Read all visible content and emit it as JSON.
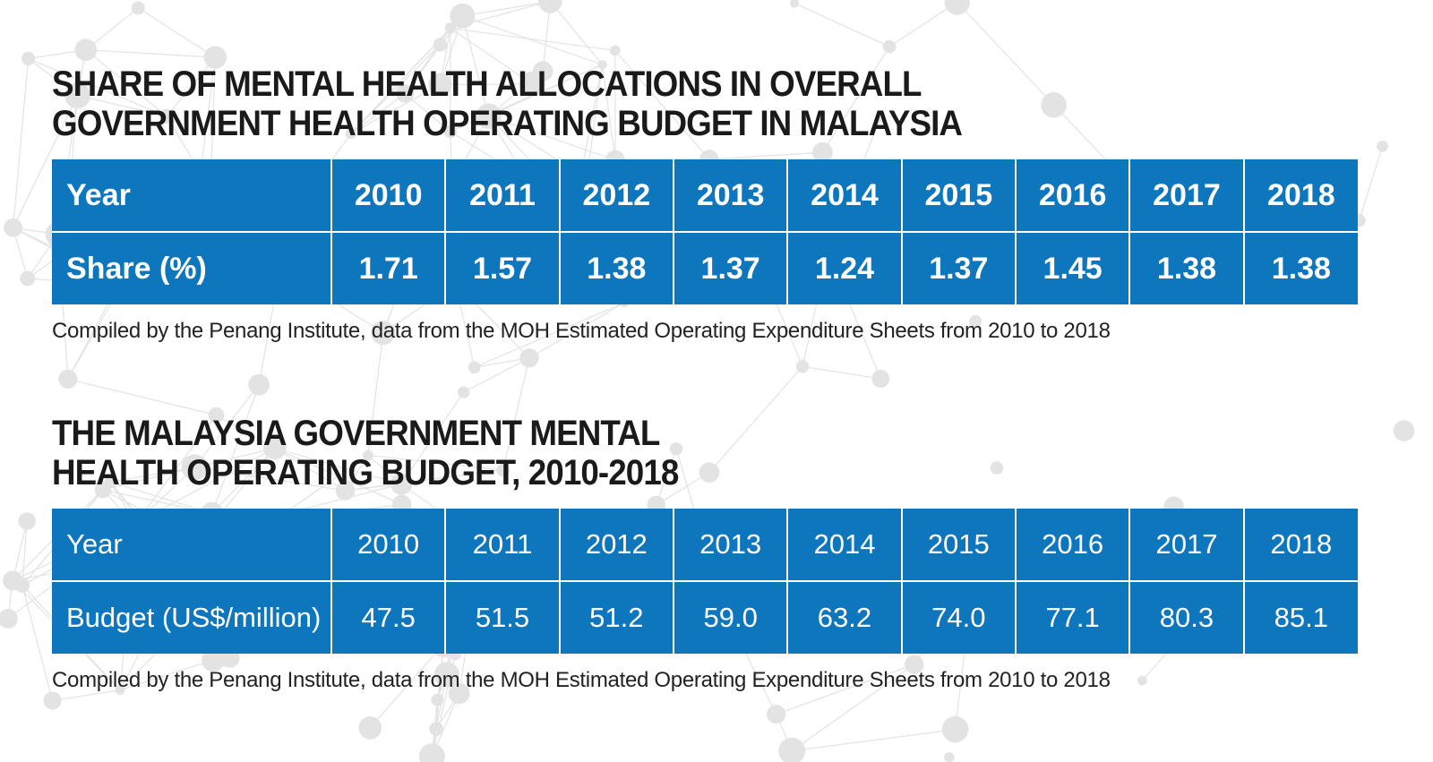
{
  "colors": {
    "table_fill": "#0e76bd",
    "title_text": "#1a1a1a",
    "cell_text": "#ffffff",
    "background_network": "#e3e3e3"
  },
  "chart_data": [
    {
      "type": "table",
      "title_lines": [
        "SHARE OF MENTAL HEALTH ALLOCATIONS IN OVERALL",
        "GOVERNMENT HEALTH OPERATING BUDGET IN MALAYSIA"
      ],
      "header_label": "Year",
      "row_label": "Share (%)",
      "years": [
        "2010",
        "2011",
        "2012",
        "2013",
        "2014",
        "2015",
        "2016",
        "2017",
        "2018"
      ],
      "values": [
        "1.71",
        "1.57",
        "1.38",
        "1.37",
        "1.24",
        "1.37",
        "1.45",
        "1.38",
        "1.38"
      ],
      "source": "Compiled by the Penang Institute, data from the MOH Estimated Operating Expenditure Sheets from 2010 to 2018"
    },
    {
      "type": "table",
      "title_lines": [
        "THE MALAYSIA GOVERNMENT MENTAL",
        "HEALTH OPERATING BUDGET, 2010-2018"
      ],
      "header_label": "Year",
      "row_label": "Budget (US$/million)",
      "years": [
        "2010",
        "2011",
        "2012",
        "2013",
        "2014",
        "2015",
        "2016",
        "2017",
        "2018"
      ],
      "values": [
        "47.5",
        "51.5",
        "51.2",
        "59.0",
        "63.2",
        "74.0",
        "77.1",
        "80.3",
        "85.1"
      ],
      "source": "Compiled by the Penang Institute, data from the MOH Estimated Operating Expenditure Sheets from 2010 to 2018"
    }
  ]
}
